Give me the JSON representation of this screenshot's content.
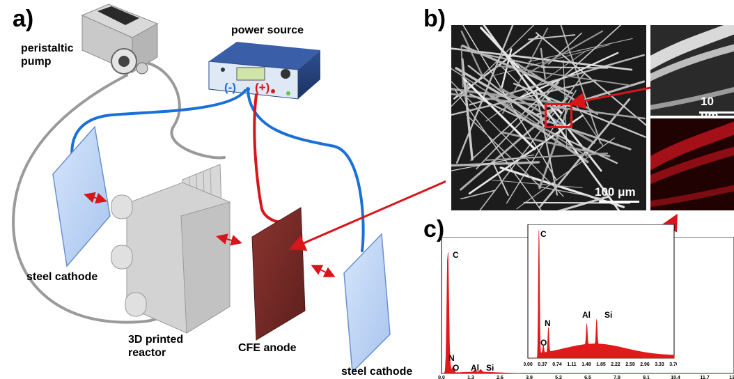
{
  "panels": {
    "a": "a)",
    "b": "b)",
    "c": "c)"
  },
  "setup": {
    "pump_label": "peristaltic\npump",
    "power_label": "power source",
    "minus": "(-)",
    "plus": "(+)",
    "cathode_left_label": "steel cathode",
    "cathode_right_label": "steel cathode",
    "reactor_label": "3D printed\nreactor",
    "anode_label": "CFE anode"
  },
  "sem": {
    "scale_large": "100 μm",
    "scale_zoom": "10 μm"
  },
  "eds_main": {
    "peaks": [
      "C",
      "N",
      "O",
      "Al",
      "Si"
    ],
    "x_ticks": [
      "0.0",
      "1.3",
      "2.6",
      "3.9",
      "5.2",
      "6.5",
      "7.8",
      "9.1",
      "10.4",
      "11.7",
      "13.0"
    ]
  },
  "eds_inset": {
    "peaks": [
      "C",
      "O",
      "N",
      "Al",
      "Si"
    ],
    "x_ticks": [
      "0.00",
      "0.37",
      "0.74",
      "1.11",
      "1.48",
      "1.85",
      "2.22",
      "2.59",
      "2.96",
      "3.33",
      "3.70"
    ]
  },
  "colors": {
    "cathode_wire": "#1a6fd8",
    "anode_wire": "#d7151b",
    "eds_fill": "#e0191a",
    "anode": "#7a2a26",
    "cathode": "#bcd3f2"
  },
  "chart_data": [
    {
      "type": "area",
      "title": "",
      "xlabel": "",
      "ylabel": "",
      "xlim": [
        0.0,
        13.0
      ],
      "x_ticks": [
        0.0,
        1.3,
        2.6,
        3.9,
        5.2,
        6.5,
        7.8,
        9.1,
        10.4,
        11.7,
        13.0
      ],
      "peaks": [
        {
          "label": "C",
          "x": 0.28,
          "rel_intensity": 1.0
        },
        {
          "label": "N",
          "x": 0.39,
          "rel_intensity": 0.04
        },
        {
          "label": "O",
          "x": 0.52,
          "rel_intensity": 0.05
        },
        {
          "label": "Al",
          "x": 1.49,
          "rel_intensity": 0.02
        },
        {
          "label": "Si",
          "x": 1.74,
          "rel_intensity": 0.02
        }
      ]
    },
    {
      "type": "area",
      "title": "",
      "xlabel": "",
      "ylabel": "",
      "xlim": [
        0.0,
        3.7
      ],
      "x_ticks": [
        0.0,
        0.37,
        0.74,
        1.11,
        1.48,
        1.85,
        2.22,
        2.59,
        2.96,
        3.33,
        3.7
      ],
      "peaks": [
        {
          "label": "C",
          "x": 0.28,
          "rel_intensity": 1.0
        },
        {
          "label": "N",
          "x": 0.39,
          "rel_intensity": 0.06
        },
        {
          "label": "O",
          "x": 0.52,
          "rel_intensity": 0.19
        },
        {
          "label": "Al",
          "x": 1.49,
          "rel_intensity": 0.16
        },
        {
          "label": "Si",
          "x": 1.74,
          "rel_intensity": 0.19
        }
      ]
    }
  ]
}
